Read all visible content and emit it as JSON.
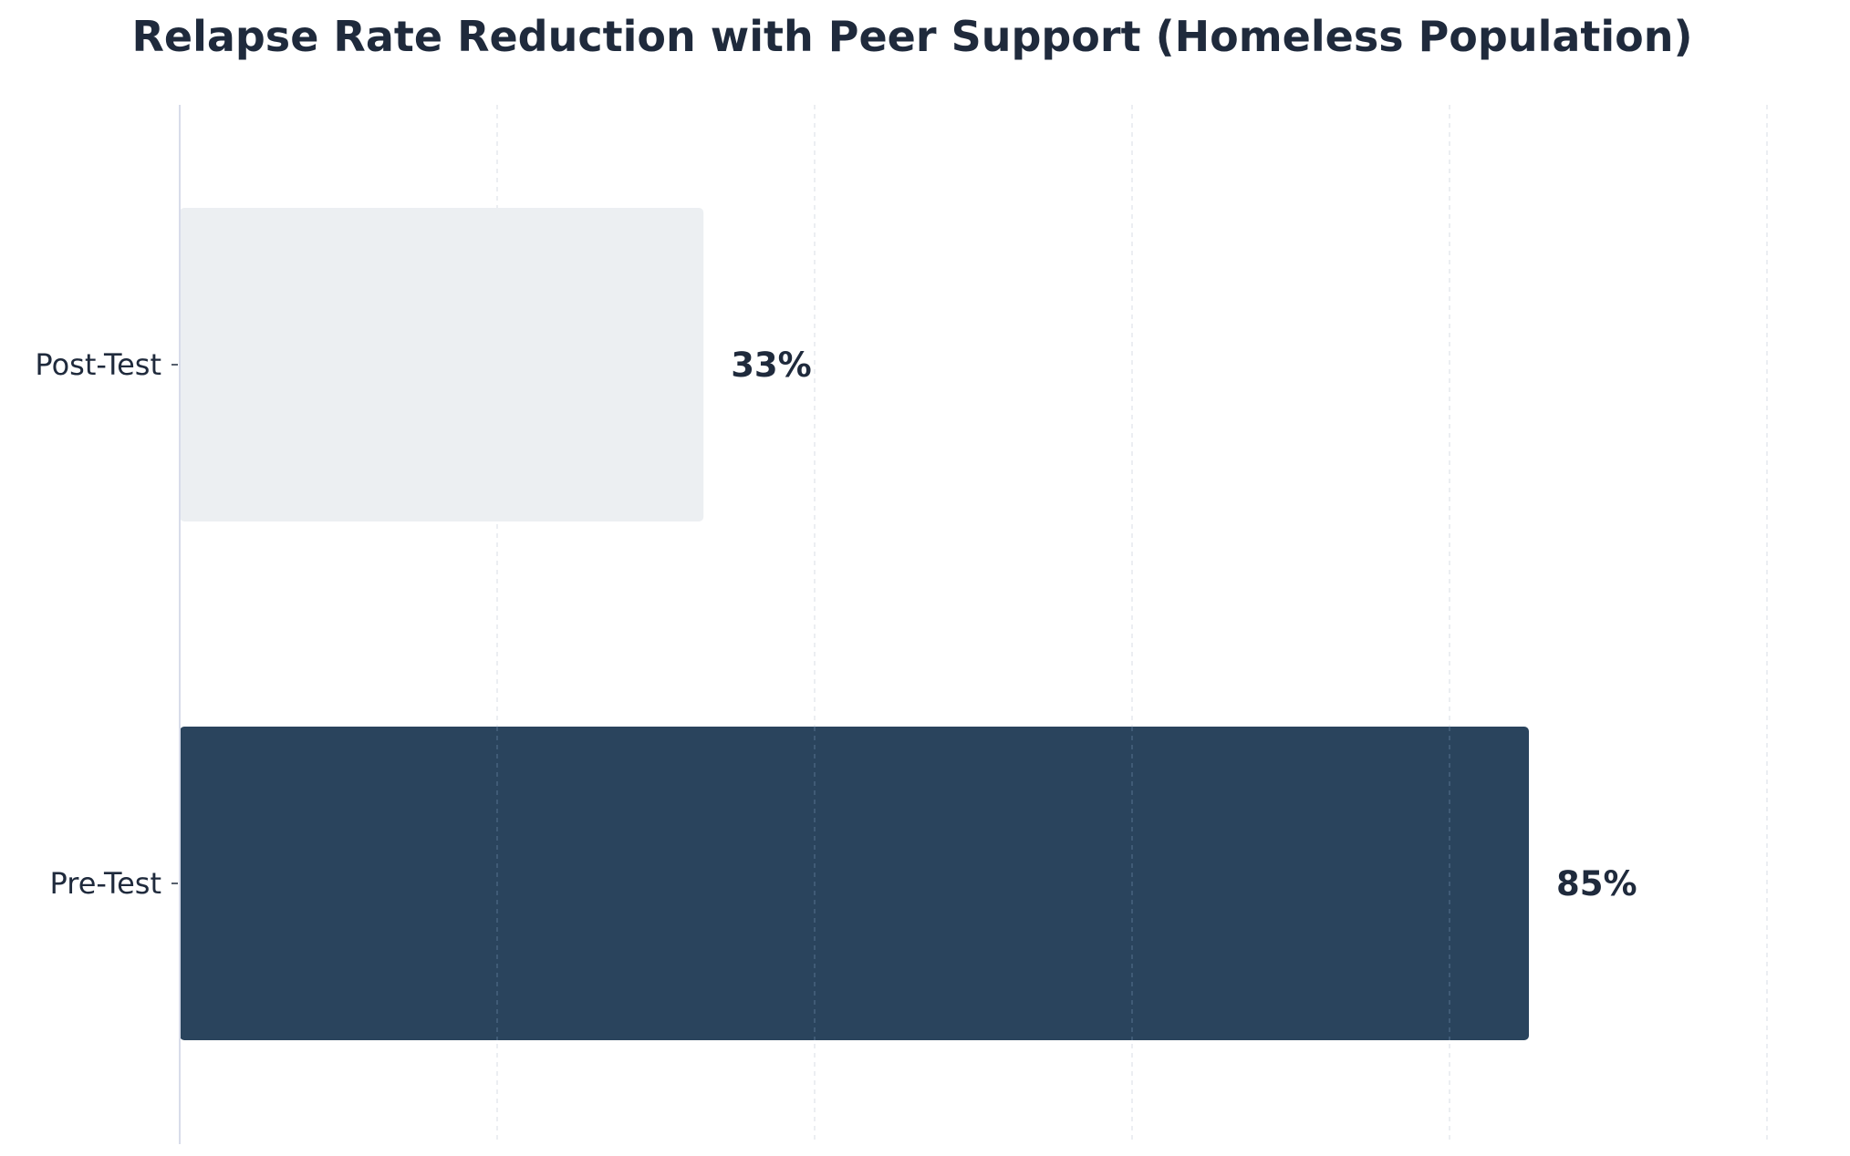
{
  "chart_data": {
    "type": "bar",
    "orientation": "horizontal",
    "title": "Relapse Rate Reduction with Peer Support (Homeless Population)",
    "xlabel": "",
    "ylabel": "",
    "categories": [
      "Pre-Test",
      "Post-Test"
    ],
    "values": [
      85,
      33
    ],
    "data_labels": [
      "85%",
      "33%"
    ],
    "xlim": [
      0,
      100
    ],
    "grid": true,
    "grid_axis": "x",
    "legend": "none",
    "colors": {
      "Pre-Test": "#2a445d",
      "Post-Test": "#eceff2",
      "title": "#1f2a3c",
      "axis": "#d8dcea",
      "grid": "#c9d1dc",
      "grid_on_bar": "#48637e"
    }
  }
}
